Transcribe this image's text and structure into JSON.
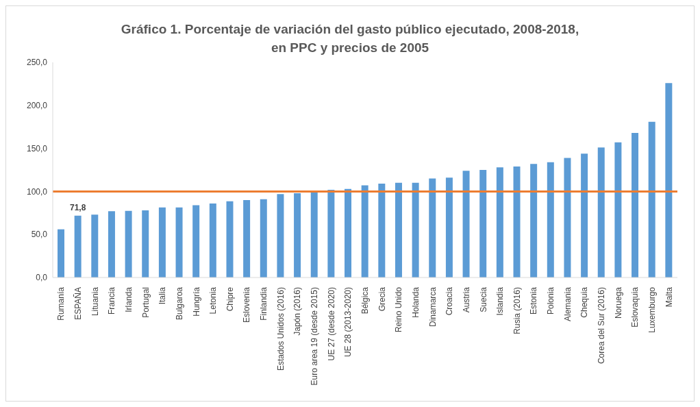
{
  "chart_data": {
    "type": "bar",
    "title": "Gráfico 1. Porcentaje de variación del gasto público ejecutado, 2008-2018,\nen PPC y precios de 2005",
    "categories": [
      "Rumanía",
      "ESPAÑA",
      "Lituania",
      "Francia",
      "Irlanda",
      "Portugal",
      "Italia",
      "Bulgaroa",
      "Hungría",
      "Letonia",
      "Chipre",
      "Eslovenia",
      "Finlandia",
      "Estados Unidos (2016)",
      "Japón (2016)",
      "Euro area 19 (desde 2015)",
      "UE 27 (desde 2020)",
      "UE 28 (2013-2020)",
      "Bélgica",
      "Grecia",
      "Reino Unido",
      "Holanda",
      "Dinamarca",
      "Croacia",
      "Austria",
      "Suecia",
      "Islandia",
      "Rusia (2016)",
      "Estonia",
      "Polonia",
      "Alemania",
      "Chequia",
      "Corea del Sur (2016)",
      "Noruega",
      "Eslovaquia",
      "Luxemburgo",
      "Malta"
    ],
    "values": [
      56,
      71.8,
      73,
      77,
      77.5,
      78,
      81.5,
      81.5,
      84,
      86,
      88.5,
      90,
      91,
      97,
      98,
      100,
      102,
      103,
      107,
      109,
      110,
      110,
      115,
      116,
      124,
      125,
      128,
      129,
      132,
      134,
      139,
      144,
      151,
      157,
      168,
      181,
      226
    ],
    "value_labels": [
      null,
      "71,8",
      null,
      null,
      null,
      null,
      null,
      null,
      null,
      null,
      null,
      null,
      null,
      null,
      null,
      null,
      null,
      null,
      null,
      null,
      null,
      null,
      null,
      null,
      null,
      null,
      null,
      null,
      null,
      null,
      null,
      null,
      null,
      null,
      null,
      null,
      null
    ],
    "color": "#5b9bd5",
    "ylim": [
      0,
      250
    ],
    "yticks": [
      {
        "value": 0,
        "label": "0,0"
      },
      {
        "value": 50,
        "label": "50,0"
      },
      {
        "value": 100,
        "label": "100,0"
      },
      {
        "value": 150,
        "label": "150,0"
      },
      {
        "value": 200,
        "label": "200,0"
      },
      {
        "value": 250,
        "label": "250,0"
      }
    ],
    "ref_lines": [
      {
        "axis": "y",
        "value": 100,
        "color": "#ed7d31"
      }
    ],
    "grid": false,
    "legend": false
  }
}
